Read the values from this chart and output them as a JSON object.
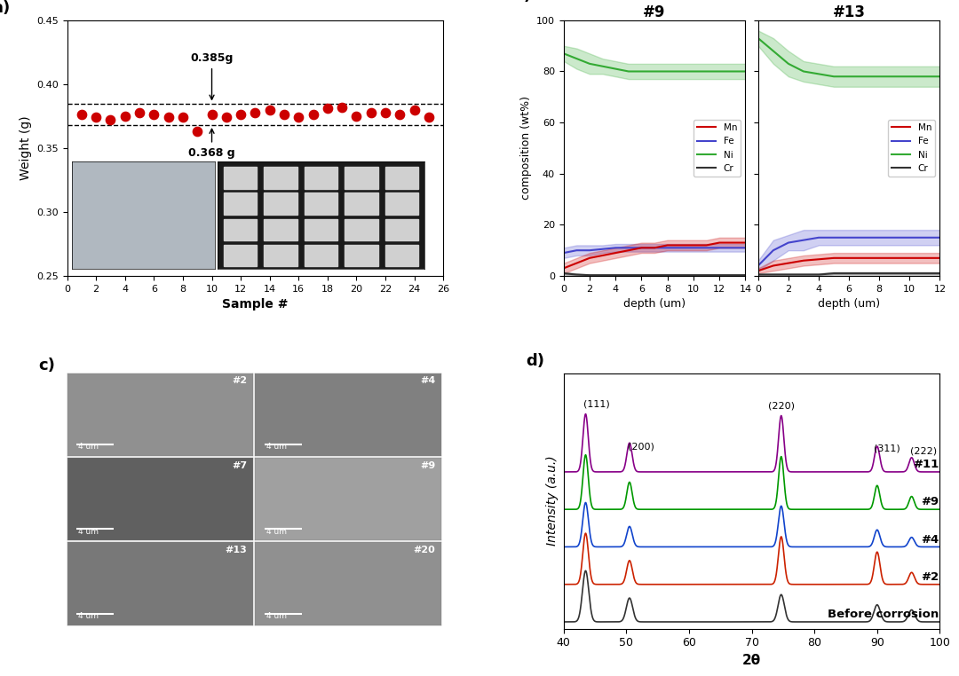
{
  "panel_a": {
    "xlabel": "Sample #",
    "ylabel": "Weight (g)",
    "ylim": [
      0.25,
      0.45
    ],
    "xlim": [
      0,
      26
    ],
    "xticks": [
      0,
      2,
      4,
      6,
      8,
      10,
      12,
      14,
      16,
      18,
      20,
      22,
      24,
      26
    ],
    "yticks": [
      0.25,
      0.3,
      0.35,
      0.4,
      0.45
    ],
    "scatter_x": [
      1,
      2,
      3,
      4,
      5,
      6,
      7,
      8,
      9,
      10,
      11,
      12,
      13,
      14,
      15,
      16,
      17,
      18,
      19,
      20,
      21,
      22,
      23,
      24,
      25
    ],
    "scatter_y": [
      0.376,
      0.374,
      0.372,
      0.375,
      0.378,
      0.376,
      0.374,
      0.374,
      0.363,
      0.376,
      0.374,
      0.376,
      0.378,
      0.38,
      0.376,
      0.374,
      0.376,
      0.381,
      0.382,
      0.375,
      0.378,
      0.378,
      0.376,
      0.38,
      0.374
    ],
    "hline_upper": 0.385,
    "hline_lower": 0.368,
    "annotation_upper": "0.385g",
    "annotation_lower": "0.368 g",
    "scatter_color": "#cc0000",
    "hline_color": "black",
    "hline_style": "--"
  },
  "panel_b9": {
    "title": "#9",
    "xlabel": "depth (um)",
    "ylabel": "composition (wt%)",
    "xlim": [
      0,
      14
    ],
    "ylim": [
      0,
      100
    ],
    "xticks": [
      0,
      2,
      4,
      6,
      8,
      10,
      12,
      14
    ],
    "yticks": [
      0,
      20,
      40,
      60,
      80,
      100
    ],
    "Ni_mean": [
      87,
      85,
      83,
      82,
      81,
      80,
      80,
      80,
      80,
      80,
      80,
      80,
      80,
      80
    ],
    "Ni_upper": [
      90,
      89,
      87,
      85,
      84,
      83,
      83,
      83,
      83,
      83,
      83,
      83,
      83,
      83
    ],
    "Ni_lower": [
      84,
      81,
      79,
      79,
      78,
      77,
      77,
      77,
      77,
      77,
      77,
      77,
      77,
      77
    ],
    "Fe_mean": [
      9,
      10,
      10,
      10.5,
      11,
      11,
      11,
      11,
      11,
      11,
      11,
      11,
      11,
      11
    ],
    "Fe_upper": [
      11,
      12,
      12,
      12,
      12.5,
      12.5,
      12.5,
      12.5,
      12.5,
      12.5,
      12.5,
      12.5,
      12.5,
      12.5
    ],
    "Fe_lower": [
      7,
      8,
      8,
      9,
      9.5,
      9.5,
      9.5,
      9.5,
      9.5,
      9.5,
      9.5,
      9.5,
      9.5,
      9.5
    ],
    "Mn_mean": [
      3,
      5,
      7,
      8,
      9,
      10,
      11,
      11,
      12,
      12,
      12,
      12,
      13,
      13
    ],
    "Mn_upper": [
      5,
      7,
      9,
      10,
      11,
      12,
      13,
      13,
      14,
      14,
      14,
      14,
      15,
      15
    ],
    "Mn_lower": [
      1,
      3,
      5,
      6,
      7,
      8,
      9,
      9,
      10,
      10,
      10,
      10,
      11,
      11
    ],
    "Cr_mean": [
      1,
      0.5,
      0.3,
      0.3,
      0.3,
      0.3,
      0.3,
      0.3,
      0.3,
      0.3,
      0.3,
      0.3,
      0.3,
      0.3
    ],
    "Cr_upper": [
      1.5,
      1,
      0.5,
      0.5,
      0.5,
      0.5,
      0.5,
      0.5,
      0.5,
      0.5,
      0.5,
      0.5,
      0.5,
      0.5
    ],
    "Cr_lower": [
      0.5,
      0.1,
      0.1,
      0.1,
      0.1,
      0.1,
      0.1,
      0.1,
      0.1,
      0.1,
      0.1,
      0.1,
      0.1,
      0.1
    ],
    "depth_x": [
      0,
      1,
      2,
      3,
      4,
      5,
      6,
      7,
      8,
      9,
      10,
      11,
      12,
      14
    ]
  },
  "panel_b13": {
    "title": "#13",
    "xlabel": "depth (um)",
    "ylabel": "composition (wt%)",
    "xlim": [
      0,
      12
    ],
    "ylim": [
      0,
      100
    ],
    "xticks": [
      0,
      2,
      4,
      6,
      8,
      10,
      12
    ],
    "yticks": [
      0,
      20,
      40,
      60,
      80,
      100
    ],
    "Ni_mean": [
      93,
      88,
      83,
      80,
      79,
      78,
      78,
      78,
      78,
      78,
      78,
      78
    ],
    "Ni_upper": [
      96,
      93,
      88,
      84,
      83,
      82,
      82,
      82,
      82,
      82,
      82,
      82
    ],
    "Ni_lower": [
      90,
      83,
      78,
      76,
      75,
      74,
      74,
      74,
      74,
      74,
      74,
      74
    ],
    "Fe_mean": [
      4,
      10,
      13,
      14,
      15,
      15,
      15,
      15,
      15,
      15,
      15,
      15
    ],
    "Fe_upper": [
      6,
      14,
      16,
      18,
      18,
      18,
      18,
      18,
      18,
      18,
      18,
      18
    ],
    "Fe_lower": [
      2,
      6,
      10,
      10,
      12,
      12,
      12,
      12,
      12,
      12,
      12,
      12
    ],
    "Mn_mean": [
      2,
      4,
      5,
      6,
      6.5,
      7,
      7,
      7,
      7,
      7,
      7,
      7
    ],
    "Mn_upper": [
      3,
      6,
      7,
      8,
      8.5,
      9,
      9,
      9,
      9,
      9,
      9,
      9
    ],
    "Mn_lower": [
      1,
      2,
      3,
      4,
      4.5,
      5,
      5,
      5,
      5,
      5,
      5,
      5
    ],
    "Cr_mean": [
      0.5,
      0.5,
      0.5,
      0.5,
      0.5,
      1,
      1,
      1,
      1,
      1,
      1,
      1
    ],
    "Cr_upper": [
      1,
      1,
      1,
      1,
      1,
      1.5,
      1.5,
      1.5,
      1.5,
      1.5,
      1.5,
      1.5
    ],
    "Cr_lower": [
      0.1,
      0.1,
      0.1,
      0.1,
      0.1,
      0.5,
      0.5,
      0.5,
      0.5,
      0.5,
      0.5,
      0.5
    ],
    "depth_x": [
      0,
      1,
      2,
      3,
      4,
      5,
      6,
      7,
      8,
      9,
      10,
      12
    ]
  },
  "panel_d": {
    "xlabel": "2θ",
    "ylabel": "Intensity (a.u.)",
    "xlim": [
      40,
      100
    ],
    "xticks": [
      40,
      50,
      60,
      70,
      80,
      90,
      100
    ],
    "peaks_111": 43.5,
    "peaks_200": 50.5,
    "peaks_220": 74.7,
    "peaks_311": 90.0,
    "peaks_222": 95.5,
    "sample_colors": [
      "#333333",
      "#CC2200",
      "#1144CC",
      "#009900",
      "#880088"
    ],
    "sample_labels": [
      "Before corrosion",
      "#2",
      "#4",
      "#9",
      "#11"
    ],
    "offsets": [
      0.0,
      1.1,
      2.2,
      3.3,
      4.4
    ]
  },
  "colors": {
    "Mn": "#cc0000",
    "Fe": "#4444cc",
    "Ni": "#33aa33",
    "Cr": "#333333"
  },
  "sem_labels": [
    [
      "#2",
      "#4"
    ],
    [
      "#7",
      "#9"
    ],
    [
      "#13",
      "#20"
    ]
  ],
  "sem_gray": [
    [
      "#909090",
      "#808080"
    ],
    [
      "#606060",
      "#a0a0a0"
    ],
    [
      "#787878",
      "#909090"
    ]
  ]
}
